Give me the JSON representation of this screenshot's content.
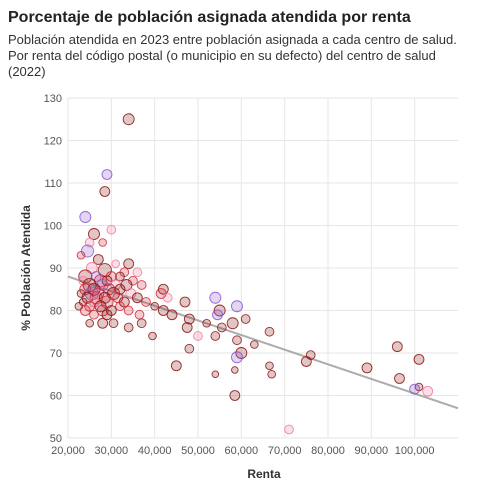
{
  "chart_data": {
    "type": "scatter",
    "title": "Porcentaje de población asignada atendida por renta",
    "subtitle_lines": [
      "Población atendida en 2023 entre población asignada a cada centro de salud.",
      "Por renta del código postal (o municipio en su defecto) del centro de salud",
      "(2022)"
    ],
    "xlabel": "Renta",
    "ylabel": "% Población Atendida",
    "xlim": [
      20000,
      110000
    ],
    "ylim": [
      50,
      130
    ],
    "x_ticks": [
      20000,
      30000,
      40000,
      50000,
      60000,
      70000,
      80000,
      90000,
      100000
    ],
    "x_tick_labels": [
      "20,000",
      "30,000",
      "40,000",
      "50,000",
      "60,000",
      "70,000",
      "80,000",
      "90,000",
      "100,000"
    ],
    "y_ticks": [
      50,
      60,
      70,
      80,
      90,
      100,
      110,
      120,
      130
    ],
    "y_tick_labels": [
      "50",
      "60",
      "70",
      "80",
      "90",
      "100",
      "110",
      "120",
      "130"
    ],
    "grid": true,
    "trendline": {
      "x": [
        20000,
        110000
      ],
      "y": [
        88,
        57
      ]
    },
    "colors": {
      "dark_red": "#8b1a1a",
      "red": "#d02c3c",
      "pink": "#f07aa0",
      "purple": "#8a5ad0",
      "trend": "#999999",
      "grid": "#e6e6e6"
    },
    "points": [
      [
        34000,
        125,
        1.0,
        "dark_red"
      ],
      [
        29000,
        112,
        0.9,
        "purple"
      ],
      [
        28500,
        108,
        0.9,
        "dark_red"
      ],
      [
        24000,
        102,
        1.0,
        "purple"
      ],
      [
        30000,
        99,
        0.8,
        "pink"
      ],
      [
        26000,
        98,
        1.0,
        "dark_red"
      ],
      [
        25000,
        96,
        0.8,
        "pink"
      ],
      [
        28000,
        96,
        0.7,
        "red"
      ],
      [
        24500,
        94,
        1.1,
        "purple"
      ],
      [
        23000,
        93,
        0.7,
        "red"
      ],
      [
        27000,
        92,
        0.9,
        "dark_red"
      ],
      [
        31000,
        91,
        0.7,
        "pink"
      ],
      [
        34000,
        91,
        0.9,
        "dark_red"
      ],
      [
        25500,
        90,
        1.0,
        "pink"
      ],
      [
        28500,
        89.5,
        1.2,
        "dark_red"
      ],
      [
        33000,
        89,
        0.8,
        "red"
      ],
      [
        36000,
        89,
        0.8,
        "pink"
      ],
      [
        24000,
        88,
        1.2,
        "dark_red"
      ],
      [
        26500,
        88,
        0.9,
        "purple"
      ],
      [
        30000,
        88,
        0.9,
        "red"
      ],
      [
        32000,
        88,
        0.8,
        "dark_red"
      ],
      [
        23500,
        87,
        0.8,
        "pink"
      ],
      [
        27500,
        87,
        1.1,
        "red"
      ],
      [
        29000,
        87,
        0.9,
        "dark_red"
      ],
      [
        35000,
        87,
        0.8,
        "red"
      ],
      [
        25000,
        86,
        1.2,
        "dark_red"
      ],
      [
        28000,
        86,
        1.0,
        "purple"
      ],
      [
        31000,
        86,
        0.9,
        "pink"
      ],
      [
        33500,
        86,
        1.0,
        "dark_red"
      ],
      [
        37000,
        86,
        0.8,
        "red"
      ],
      [
        24000,
        85,
        1.0,
        "red"
      ],
      [
        26000,
        85,
        1.1,
        "dark_red"
      ],
      [
        29500,
        85,
        1.0,
        "red"
      ],
      [
        32000,
        85,
        0.9,
        "dark_red"
      ],
      [
        42000,
        85,
        0.9,
        "dark_red"
      ],
      [
        23000,
        84,
        0.7,
        "dark_red"
      ],
      [
        25500,
        84,
        1.2,
        "purple"
      ],
      [
        27000,
        84,
        1.0,
        "red"
      ],
      [
        30500,
        84,
        1.1,
        "dark_red"
      ],
      [
        34500,
        84,
        0.9,
        "pink"
      ],
      [
        41500,
        84,
        0.9,
        "red"
      ],
      [
        24500,
        83,
        1.0,
        "dark_red"
      ],
      [
        26500,
        83,
        1.1,
        "red"
      ],
      [
        28500,
        83,
        1.0,
        "dark_red"
      ],
      [
        31500,
        83,
        0.9,
        "red"
      ],
      [
        36000,
        83,
        0.9,
        "dark_red"
      ],
      [
        43000,
        83,
        0.8,
        "pink"
      ],
      [
        54000,
        83,
        1.0,
        "purple"
      ],
      [
        23500,
        82,
        0.7,
        "dark_red"
      ],
      [
        26000,
        82,
        0.9,
        "pink"
      ],
      [
        29000,
        82,
        1.1,
        "red"
      ],
      [
        33000,
        82,
        0.9,
        "dark_red"
      ],
      [
        38000,
        82,
        0.8,
        "red"
      ],
      [
        47000,
        82,
        0.9,
        "dark_red"
      ],
      [
        22500,
        81,
        0.7,
        "dark_red"
      ],
      [
        25000,
        81,
        0.9,
        "red"
      ],
      [
        27500,
        81,
        1.0,
        "dark_red"
      ],
      [
        32000,
        81,
        0.8,
        "red"
      ],
      [
        40000,
        81,
        0.7,
        "dark_red"
      ],
      [
        59000,
        81,
        1.0,
        "purple"
      ],
      [
        24000,
        80,
        0.9,
        "red"
      ],
      [
        28000,
        80,
        1.0,
        "red"
      ],
      [
        30000,
        80,
        0.9,
        "dark_red"
      ],
      [
        34000,
        80,
        0.8,
        "red"
      ],
      [
        42000,
        80,
        0.9,
        "dark_red"
      ],
      [
        55000,
        80,
        1.0,
        "dark_red"
      ],
      [
        26000,
        79,
        0.8,
        "red"
      ],
      [
        29000,
        79,
        0.9,
        "dark_red"
      ],
      [
        36500,
        79,
        0.8,
        "red"
      ],
      [
        44000,
        79,
        0.9,
        "dark_red"
      ],
      [
        54500,
        79,
        0.9,
        "purple"
      ],
      [
        48000,
        78,
        0.9,
        "dark_red"
      ],
      [
        61000,
        78,
        0.8,
        "dark_red"
      ],
      [
        25000,
        77,
        0.7,
        "dark_red"
      ],
      [
        28000,
        77,
        0.9,
        "dark_red"
      ],
      [
        30500,
        77,
        0.8,
        "dark_red"
      ],
      [
        37000,
        77,
        0.8,
        "dark_red"
      ],
      [
        52000,
        77,
        0.7,
        "dark_red"
      ],
      [
        58000,
        77,
        1.0,
        "dark_red"
      ],
      [
        34000,
        76,
        0.8,
        "dark_red"
      ],
      [
        47500,
        76,
        0.9,
        "dark_red"
      ],
      [
        55500,
        76,
        0.8,
        "dark_red"
      ],
      [
        66500,
        75,
        0.8,
        "dark_red"
      ],
      [
        39500,
        74,
        0.7,
        "dark_red"
      ],
      [
        50000,
        74,
        0.8,
        "pink"
      ],
      [
        54000,
        74,
        0.8,
        "dark_red"
      ],
      [
        59000,
        73,
        0.8,
        "dark_red"
      ],
      [
        63000,
        72,
        0.7,
        "dark_red"
      ],
      [
        48000,
        71,
        0.8,
        "dark_red"
      ],
      [
        96000,
        71.5,
        0.9,
        "dark_red"
      ],
      [
        60000,
        70,
        1.0,
        "dark_red"
      ],
      [
        76000,
        69.5,
        0.8,
        "dark_red"
      ],
      [
        59000,
        69,
        1.0,
        "purple"
      ],
      [
        101000,
        68.5,
        0.9,
        "dark_red"
      ],
      [
        75000,
        68,
        0.9,
        "dark_red"
      ],
      [
        45000,
        67,
        0.9,
        "dark_red"
      ],
      [
        66500,
        67,
        0.7,
        "dark_red"
      ],
      [
        89000,
        66.5,
        0.9,
        "dark_red"
      ],
      [
        58500,
        66,
        0.6,
        "dark_red"
      ],
      [
        54000,
        65,
        0.6,
        "dark_red"
      ],
      [
        67000,
        65,
        0.7,
        "dark_red"
      ],
      [
        96500,
        64,
        0.9,
        "dark_red"
      ],
      [
        101000,
        62,
        0.7,
        "dark_red"
      ],
      [
        100000,
        61.5,
        0.9,
        "purple"
      ],
      [
        103000,
        61,
        0.9,
        "pink"
      ],
      [
        58500,
        60,
        0.9,
        "dark_red"
      ],
      [
        71000,
        52,
        0.8,
        "pink"
      ]
    ]
  }
}
